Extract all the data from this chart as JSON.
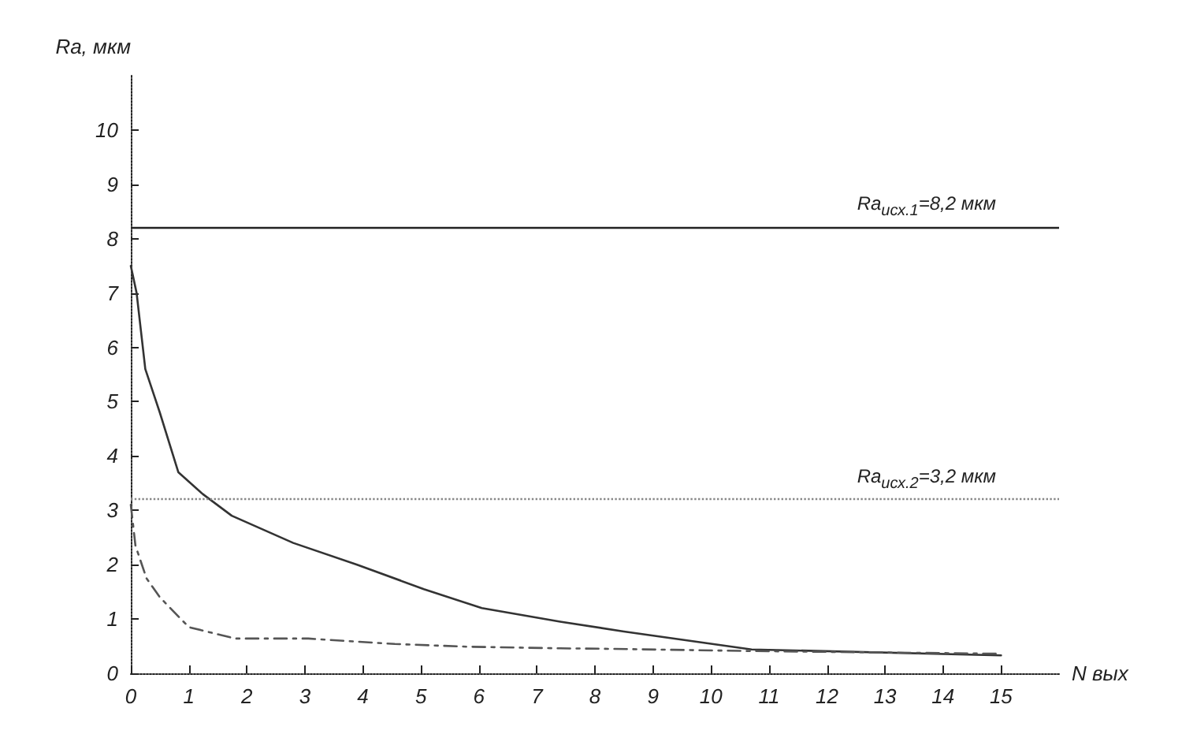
{
  "chart_data": {
    "type": "line",
    "xlabel": "N вых",
    "ylabel": "Ra, мкм",
    "xlim": [
      0,
      16
    ],
    "xticks": [
      0,
      1,
      2,
      3,
      4,
      5,
      6,
      7,
      8,
      9,
      10,
      11,
      12,
      13,
      14,
      15
    ],
    "ylim": [
      0,
      11
    ],
    "yticks": [
      0,
      1,
      2,
      3,
      4,
      5,
      6,
      7,
      8,
      9,
      10
    ],
    "grid": false,
    "marker": "none",
    "series": [
      {
        "color": "#333333",
        "line_style": "solid",
        "x": [
          0,
          0.1,
          0.25,
          0.5,
          0.82,
          1.24,
          1.74,
          2.8,
          3.9,
          5.05,
          6.05,
          7.4,
          8.5,
          10.7,
          15
        ],
        "values": [
          7.5,
          7.0,
          5.6,
          4.8,
          3.7,
          3.3,
          2.9,
          2.4,
          2.0,
          1.55,
          1.2,
          0.95,
          0.77,
          0.44,
          0.33
        ]
      },
      {
        "color": "#555555",
        "line_style": "dashed",
        "x": [
          0,
          0.08,
          0.27,
          0.5,
          1,
          1.57,
          1.8,
          3.06,
          4.55,
          5.8,
          7.4,
          8.3,
          10.7,
          15
        ],
        "values": [
          3.1,
          2.35,
          1.75,
          1.4,
          0.85,
          0.7,
          0.64,
          0.64,
          0.54,
          0.49,
          0.46,
          0.45,
          0.41,
          0.36
        ]
      }
    ],
    "ref_lines": [
      {
        "axis": "y",
        "value": 8.2,
        "label": "Ra$_{исх.1}$=8,2 мкм",
        "color": "#222222",
        "line_style": "solid"
      },
      {
        "axis": "y",
        "value": 3.2,
        "label": "Ra$_{исх.2}$=3,2 мкм",
        "color": "#888888",
        "line_style": "dotted"
      }
    ]
  }
}
